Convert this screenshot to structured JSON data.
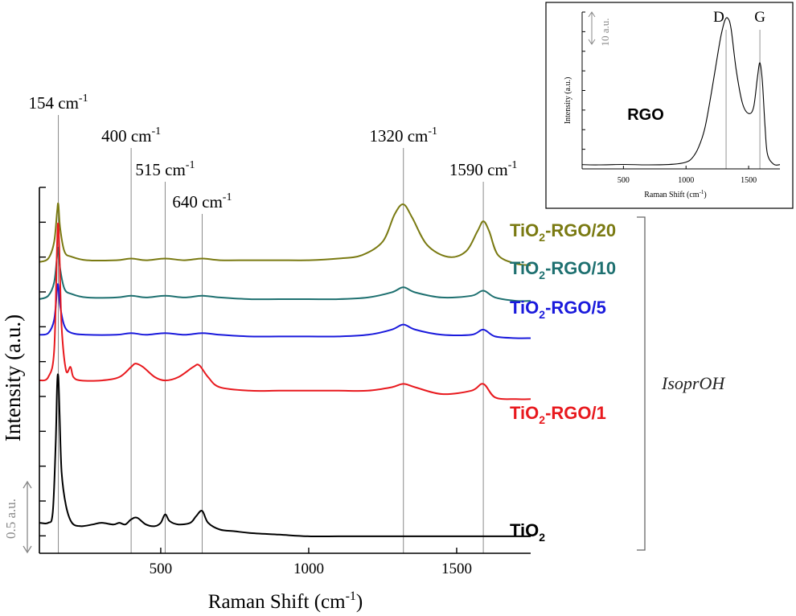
{
  "chart_data": [
    {
      "type": "line",
      "xlabel": "Raman Shift (cm",
      "xlabel_sup": "-1",
      "xlabel_close": ")",
      "ylabel": "Intensity (a.u.)",
      "xlim": [
        90,
        1750
      ],
      "x_ticks": [
        500,
        1000,
        1500
      ],
      "x_tick_labels": [
        "500",
        "1000",
        "1500"
      ],
      "grid": false,
      "y_scale_bar": {
        "label": "0.5 a.u."
      },
      "reference_lines": [
        {
          "x": 154,
          "label": "154 cm",
          "sup": "-1"
        },
        {
          "x": 400,
          "label": "400 cm",
          "sup": "-1"
        },
        {
          "x": 515,
          "label": "515 cm",
          "sup": "-1"
        },
        {
          "x": 640,
          "label": "640 cm",
          "sup": "-1"
        },
        {
          "x": 1320,
          "label": "1320 cm",
          "sup": "-1"
        },
        {
          "x": 1590,
          "label": "1590 cm",
          "sup": "-1"
        }
      ],
      "group_bracket_label": "IsoprOH",
      "series": [
        {
          "name_parts": [
            "TiO",
            "2",
            "-RGO/20"
          ],
          "color": "#7a7a12",
          "x": [
            90,
            120,
            140,
            150,
            154,
            160,
            175,
            200,
            250,
            350,
            400,
            450,
            515,
            580,
            640,
            700,
            800,
            900,
            1000,
            1100,
            1180,
            1250,
            1290,
            1320,
            1350,
            1400,
            1470,
            1530,
            1570,
            1590,
            1610,
            1640,
            1700,
            1750
          ],
          "y": [
            0.34,
            0.35,
            0.4,
            0.49,
            0.51,
            0.44,
            0.37,
            0.355,
            0.345,
            0.345,
            0.35,
            0.345,
            0.35,
            0.345,
            0.35,
            0.345,
            0.345,
            0.345,
            0.345,
            0.35,
            0.36,
            0.4,
            0.48,
            0.51,
            0.47,
            0.39,
            0.355,
            0.37,
            0.43,
            0.46,
            0.43,
            0.36,
            0.335,
            0.33
          ]
        },
        {
          "name_parts": [
            "TiO",
            "2",
            "-RGO/10"
          ],
          "color": "#1e7070",
          "x": [
            90,
            120,
            140,
            150,
            154,
            160,
            175,
            200,
            250,
            350,
            400,
            450,
            515,
            580,
            640,
            700,
            800,
            900,
            1000,
            1100,
            1200,
            1280,
            1320,
            1360,
            1450,
            1550,
            1590,
            1630,
            1700,
            1750
          ],
          "y": [
            0.23,
            0.24,
            0.28,
            0.36,
            0.38,
            0.32,
            0.26,
            0.245,
            0.235,
            0.235,
            0.24,
            0.235,
            0.24,
            0.235,
            0.24,
            0.235,
            0.23,
            0.23,
            0.23,
            0.23,
            0.235,
            0.25,
            0.265,
            0.25,
            0.235,
            0.24,
            0.255,
            0.235,
            0.225,
            0.225
          ]
        },
        {
          "name_parts": [
            "TiO",
            "2",
            "-RGO/5"
          ],
          "color": "#1a1adc",
          "x": [
            90,
            120,
            140,
            150,
            154,
            160,
            175,
            200,
            250,
            350,
            400,
            450,
            515,
            580,
            640,
            700,
            800,
            900,
            1000,
            1100,
            1200,
            1280,
            1320,
            1360,
            1450,
            1550,
            1590,
            1630,
            1700,
            1750
          ],
          "y": [
            0.125,
            0.13,
            0.17,
            0.26,
            0.27,
            0.21,
            0.15,
            0.13,
            0.125,
            0.125,
            0.13,
            0.125,
            0.13,
            0.125,
            0.13,
            0.125,
            0.12,
            0.12,
            0.12,
            0.12,
            0.125,
            0.14,
            0.155,
            0.14,
            0.125,
            0.125,
            0.14,
            0.12,
            0.115,
            0.115
          ]
        },
        {
          "name_parts": [
            "TiO",
            "2",
            "-RGO/1"
          ],
          "color": "#e8191e",
          "x": [
            90,
            120,
            140,
            150,
            154,
            158,
            165,
            180,
            195,
            205,
            230,
            300,
            360,
            400,
            415,
            440,
            480,
            515,
            560,
            610,
            630,
            660,
            700,
            800,
            900,
            1000,
            1100,
            1200,
            1280,
            1320,
            1360,
            1450,
            1550,
            1590,
            1630,
            1700,
            1750
          ],
          "y": [
            -0.01,
            0.0,
            0.08,
            0.4,
            0.45,
            0.36,
            0.15,
            0.02,
            0.03,
            0.0,
            -0.01,
            -0.01,
            0.0,
            0.03,
            0.04,
            0.03,
            0.0,
            -0.01,
            0.0,
            0.03,
            0.035,
            0.0,
            -0.03,
            -0.04,
            -0.04,
            -0.04,
            -0.04,
            -0.04,
            -0.03,
            -0.02,
            -0.03,
            -0.05,
            -0.04,
            -0.02,
            -0.06,
            -0.065,
            -0.065
          ]
        },
        {
          "name_parts": [
            "TiO",
            "2"
          ],
          "color": "#000000",
          "x": [
            90,
            120,
            135,
            145,
            150,
            154,
            158,
            165,
            180,
            200,
            230,
            270,
            300,
            340,
            360,
            380,
            400,
            420,
            450,
            480,
            500,
            515,
            530,
            560,
            600,
            620,
            640,
            660,
            700,
            750,
            800,
            900,
            1000,
            1100,
            1200,
            1320,
            1400,
            1500,
            1590,
            1700,
            1750
          ],
          "y": [
            -0.43,
            -0.43,
            -0.4,
            -0.2,
            -0.02,
            0.0,
            -0.1,
            -0.28,
            -0.38,
            -0.43,
            -0.44,
            -0.435,
            -0.43,
            -0.435,
            -0.43,
            -0.435,
            -0.42,
            -0.415,
            -0.435,
            -0.44,
            -0.43,
            -0.405,
            -0.425,
            -0.435,
            -0.43,
            -0.41,
            -0.395,
            -0.43,
            -0.45,
            -0.455,
            -0.46,
            -0.465,
            -0.47,
            -0.47,
            -0.47,
            -0.47,
            -0.47,
            -0.47,
            -0.47,
            -0.47,
            -0.47
          ]
        }
      ]
    },
    {
      "type": "line",
      "title": "RGO",
      "xlabel": "Raman Shift (cm",
      "xlabel_sup": "-1",
      "xlabel_close": ")",
      "ylabel": "Intensity (a.u.)",
      "xlim": [
        170,
        1750
      ],
      "x_ticks": [
        500,
        1000,
        1500
      ],
      "x_tick_labels": [
        "500",
        "1000",
        "1500"
      ],
      "y_scale_bar": {
        "label": "10 a.u."
      },
      "reference_lines": [
        {
          "x": 1320,
          "label": "D"
        },
        {
          "x": 1590,
          "label": "G"
        }
      ],
      "series": [
        {
          "color": "#000000",
          "x": [
            170,
            300,
            500,
            700,
            900,
            1000,
            1050,
            1100,
            1150,
            1200,
            1250,
            1280,
            1310,
            1335,
            1360,
            1400,
            1450,
            1500,
            1540,
            1570,
            1590,
            1610,
            1630,
            1650,
            1700,
            1750
          ],
          "y": [
            0.4,
            0.35,
            0.45,
            0.35,
            0.5,
            1.0,
            2.0,
            4.5,
            9.0,
            17.0,
            26.0,
            31.0,
            34.5,
            35.0,
            32.5,
            23.0,
            15.0,
            12.5,
            14.0,
            21.0,
            24.5,
            20.0,
            10.0,
            3.0,
            0.5,
            0.4
          ]
        }
      ]
    }
  ]
}
